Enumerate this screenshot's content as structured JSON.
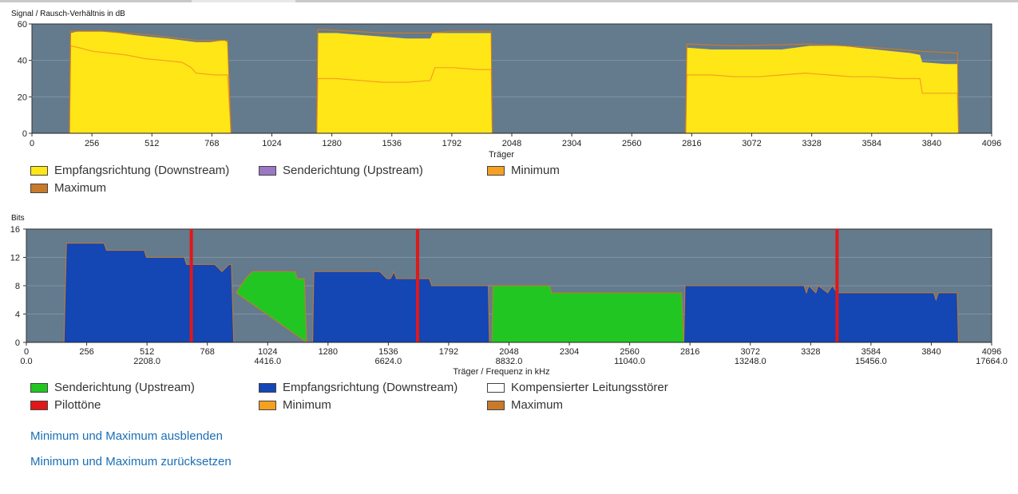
{
  "colors": {
    "plot_bg": "#647a8d",
    "downstream": "#ffe617",
    "upstream_snr": "#9a78c4",
    "minimum": "#f4a020",
    "maximum": "#c87a2a",
    "bits_upstream": "#22c622",
    "bits_downstream": "#1446b4",
    "compensated": "#ffffff",
    "pilot": "#e01818",
    "link": "#1a6fb5"
  },
  "snr_chart": {
    "title": "Signal / Rausch-Verhältnis in dB",
    "xlabel": "Träger",
    "x_ticks": [
      "0",
      "256",
      "512",
      "768",
      "1024",
      "1280",
      "1536",
      "1792",
      "2048",
      "2304",
      "2560",
      "2816",
      "3072",
      "3328",
      "3584",
      "3840",
      "4096"
    ],
    "y_ticks": [
      "0",
      "20",
      "40",
      "60"
    ],
    "legend": [
      {
        "label": "Empfangsrichtung (Downstream)",
        "color": "#ffe617"
      },
      {
        "label": "Senderichtung (Upstream)",
        "color": "#9a78c4"
      },
      {
        "label": "Minimum",
        "color": "#f4a020"
      },
      {
        "label": "Maximum",
        "color": "#c87a2a"
      }
    ]
  },
  "bits_chart": {
    "title": "Bits",
    "xlabel": "Träger / Frequenz in kHz",
    "x_ticks": [
      "0",
      "256",
      "512",
      "768",
      "1024",
      "1280",
      "1536",
      "1792",
      "2048",
      "2304",
      "2560",
      "2816",
      "3072",
      "3328",
      "3584",
      "3840",
      "4096"
    ],
    "x_ticks2": [
      "0.0",
      "",
      "2208.0",
      "",
      "4416.0",
      "",
      "6624.0",
      "",
      "8832.0",
      "",
      "11040.0",
      "",
      "13248.0",
      "",
      "15456.0",
      "",
      "17664.0"
    ],
    "y_ticks": [
      "0",
      "4",
      "8",
      "12",
      "16"
    ],
    "legend": [
      {
        "label": "Senderichtung (Upstream)",
        "color": "#22c622"
      },
      {
        "label": "Empfangsrichtung (Downstream)",
        "color": "#1446b4"
      },
      {
        "label": "Kompensierter Leitungsstörer",
        "color": "#ffffff"
      },
      {
        "label": "Pilottöne",
        "color": "#e01818"
      },
      {
        "label": "Minimum",
        "color": "#f4a020"
      },
      {
        "label": "Maximum",
        "color": "#c87a2a"
      }
    ]
  },
  "links": {
    "hide_minmax": "Minimum und Maximum ausblenden",
    "reset_minmax": "Minimum und Maximum zurücksetzen"
  },
  "chart_data": [
    {
      "type": "area",
      "title": "Signal / Rausch-Verhältnis in dB",
      "xlabel": "Träger",
      "ylabel": "",
      "xlim": [
        0,
        4096
      ],
      "ylim": [
        0,
        60
      ],
      "grid": true,
      "legend_position": "bottom",
      "series": [
        {
          "name": "Empfangsrichtung (Downstream)",
          "points": [
            [
              160,
              0
            ],
            [
              165,
              55
            ],
            [
              200,
              56
            ],
            [
              300,
              56
            ],
            [
              370,
              55
            ],
            [
              430,
              54
            ],
            [
              500,
              53
            ],
            [
              580,
              52
            ],
            [
              640,
              51
            ],
            [
              700,
              50
            ],
            [
              760,
              50
            ],
            [
              820,
              51
            ],
            [
              835,
              50
            ],
            [
              850,
              0
            ],
            [
              1215,
              0
            ],
            [
              1220,
              55
            ],
            [
              1300,
              55
            ],
            [
              1400,
              54
            ],
            [
              1500,
              53
            ],
            [
              1600,
              52
            ],
            [
              1700,
              52
            ],
            [
              1710,
              55
            ],
            [
              1800,
              55
            ],
            [
              1900,
              55
            ],
            [
              1960,
              55
            ],
            [
              1965,
              0
            ],
            [
              2790,
              0
            ],
            [
              2795,
              47
            ],
            [
              2900,
              46
            ],
            [
              3000,
              46
            ],
            [
              3100,
              46
            ],
            [
              3200,
              46
            ],
            [
              3320,
              48
            ],
            [
              3450,
              48
            ],
            [
              3600,
              46
            ],
            [
              3750,
              44
            ],
            [
              3790,
              43
            ],
            [
              3800,
              39
            ],
            [
              3900,
              38
            ],
            [
              3950,
              38
            ],
            [
              3955,
              0
            ]
          ]
        },
        {
          "name": "Minimum",
          "points": [
            [
              160,
              0
            ],
            [
              165,
              48
            ],
            [
              200,
              47
            ],
            [
              260,
              45
            ],
            [
              330,
              44
            ],
            [
              400,
              43
            ],
            [
              480,
              41
            ],
            [
              560,
              40
            ],
            [
              640,
              39
            ],
            [
              680,
              36
            ],
            [
              700,
              33
            ],
            [
              780,
              32
            ],
            [
              835,
              32
            ],
            [
              850,
              0
            ],
            [
              1215,
              0
            ],
            [
              1220,
              30
            ],
            [
              1300,
              30
            ],
            [
              1400,
              29
            ],
            [
              1500,
              28
            ],
            [
              1600,
              28
            ],
            [
              1700,
              29
            ],
            [
              1720,
              36
            ],
            [
              1800,
              36
            ],
            [
              1900,
              35
            ],
            [
              1960,
              35
            ],
            [
              1965,
              0
            ],
            [
              2790,
              0
            ],
            [
              2795,
              32
            ],
            [
              2900,
              32
            ],
            [
              3000,
              31
            ],
            [
              3100,
              31
            ],
            [
              3200,
              32
            ],
            [
              3300,
              33
            ],
            [
              3400,
              32
            ],
            [
              3500,
              31
            ],
            [
              3600,
              31
            ],
            [
              3700,
              30
            ],
            [
              3790,
              30
            ],
            [
              3800,
              22
            ],
            [
              3950,
              22
            ],
            [
              3955,
              0
            ]
          ]
        },
        {
          "name": "Maximum",
          "points": [
            [
              160,
              0
            ],
            [
              165,
              56
            ],
            [
              300,
              56
            ],
            [
              500,
              54
            ],
            [
              700,
              51
            ],
            [
              835,
              51
            ],
            [
              850,
              0
            ],
            [
              1215,
              0
            ],
            [
              1220,
              57
            ],
            [
              1500,
              55
            ],
            [
              1700,
              55
            ],
            [
              1800,
              56
            ],
            [
              1960,
              56
            ],
            [
              1965,
              0
            ],
            [
              2790,
              0
            ],
            [
              2795,
              49
            ],
            [
              3000,
              48
            ],
            [
              3320,
              49
            ],
            [
              3600,
              47
            ],
            [
              3800,
              45
            ],
            [
              3950,
              44
            ],
            [
              3955,
              0
            ]
          ]
        }
      ]
    },
    {
      "type": "area",
      "title": "Bits",
      "xlabel": "Träger / Frequenz in kHz",
      "ylabel": "",
      "xlim": [
        0,
        4096
      ],
      "ylim": [
        0,
        16
      ],
      "grid": true,
      "legend_position": "bottom",
      "series": [
        {
          "name": "Empfangsrichtung (Downstream)",
          "points": [
            [
              160,
              0
            ],
            [
              170,
              14
            ],
            [
              330,
              14
            ],
            [
              340,
              13
            ],
            [
              500,
              13
            ],
            [
              510,
              12
            ],
            [
              670,
              12
            ],
            [
              680,
              11
            ],
            [
              800,
              11
            ],
            [
              830,
              10
            ],
            [
              860,
              11
            ],
            [
              870,
              11
            ],
            [
              880,
              0
            ],
            [
              1215,
              0
            ],
            [
              1220,
              10
            ],
            [
              1500,
              10
            ],
            [
              1530,
              9
            ],
            [
              1545,
              9
            ],
            [
              1560,
              10
            ],
            [
              1570,
              9
            ],
            [
              1710,
              9
            ],
            [
              1720,
              8
            ],
            [
              1920,
              8
            ],
            [
              1960,
              8
            ],
            [
              1965,
              0
            ],
            [
              2790,
              0
            ],
            [
              2795,
              8
            ],
            [
              3300,
              8
            ],
            [
              3310,
              7
            ],
            [
              3320,
              8
            ],
            [
              3350,
              7
            ],
            [
              3360,
              8
            ],
            [
              3400,
              7
            ],
            [
              3420,
              8
            ],
            [
              3440,
              7
            ],
            [
              3850,
              7
            ],
            [
              3860,
              6
            ],
            [
              3870,
              7
            ],
            [
              3950,
              7
            ],
            [
              3955,
              0
            ]
          ]
        },
        {
          "name": "Senderichtung (Upstream)",
          "points": [
            [
              880,
              0
            ],
            [
              885,
              0
            ],
            [
              890,
              7
            ],
            [
              930,
              9
            ],
            [
              960,
              10
            ],
            [
              1140,
              10
            ],
            [
              1150,
              9
            ],
            [
              1180,
              9
            ],
            [
              1190,
              0
            ],
            [
              1975,
              0
            ],
            [
              1980,
              8
            ],
            [
              2220,
              8
            ],
            [
              2230,
              7
            ],
            [
              2780,
              7
            ],
            [
              2790,
              0
            ]
          ]
        },
        {
          "name": "Pilottöne",
          "points": [
            [
              700,
              16
            ],
            [
              1660,
              16
            ],
            [
              3440,
              16
            ]
          ]
        }
      ]
    }
  ]
}
